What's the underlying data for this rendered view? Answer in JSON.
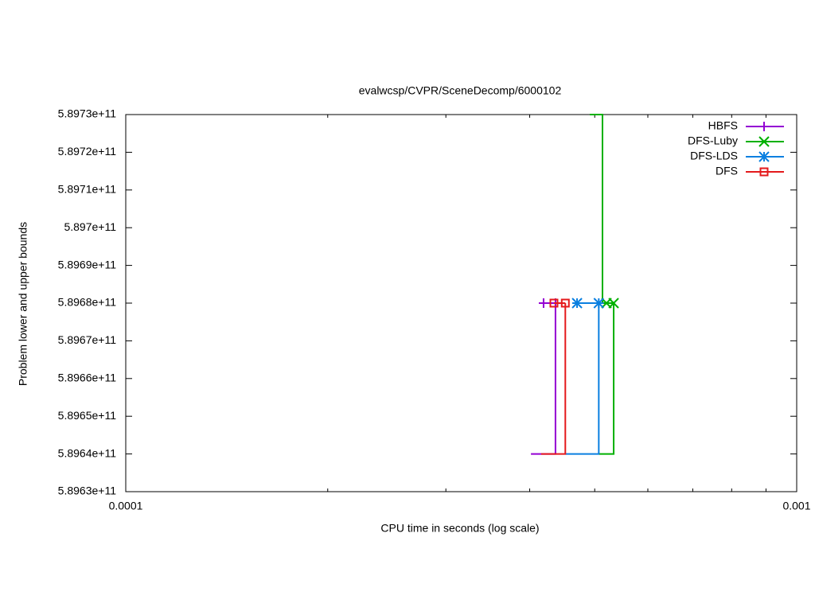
{
  "chart_data": {
    "type": "line",
    "title": "evalwcsp/CVPR/SceneDecomp/6000102",
    "xlabel": "CPU time in seconds (log scale)",
    "ylabel": "Problem lower and upper bounds",
    "xlog": true,
    "xlim": [
      0.0001,
      0.001
    ],
    "xticks": [
      0.0001,
      0.001
    ],
    "xminorticks": [
      0.0002,
      0.0003,
      0.0004,
      0.0005,
      0.0006,
      0.0007,
      0.0008,
      0.0009
    ],
    "ylim": [
      589630000000,
      589730000000
    ],
    "yticks": [
      {
        "value": 589630000000,
        "label": "5.8963e+11"
      },
      {
        "value": 589640000000,
        "label": "5.8964e+11"
      },
      {
        "value": 589650000000,
        "label": "5.8965e+11"
      },
      {
        "value": 589660000000,
        "label": "5.8966e+11"
      },
      {
        "value": 589670000000,
        "label": "5.8967e+11"
      },
      {
        "value": 589680000000,
        "label": "5.8968e+11"
      },
      {
        "value": 589690000000,
        "label": "5.8969e+11"
      },
      {
        "value": 589700000000,
        "label": "5.897e+11"
      },
      {
        "value": 589710000000,
        "label": "5.8971e+11"
      },
      {
        "value": 589720000000,
        "label": "5.8972e+11"
      },
      {
        "value": 589730000000,
        "label": "5.8973e+11"
      }
    ],
    "legend": "top-right",
    "series": [
      {
        "name": "HBFS",
        "color": "#9400d3",
        "marker": "plus",
        "x": [
          0.0004017,
          0.000437,
          0.000437,
          null,
          0.0004195,
          0.000437
        ],
        "values": [
          589640000000,
          589640000000,
          589680000000,
          null,
          589680000000,
          589680000000
        ]
      },
      {
        "name": "DFS-Luby",
        "color": "#00b000",
        "marker": "cross",
        "x": [
          0.000507,
          0.0005336,
          0.0005336,
          null,
          0.0004916,
          0.0005135,
          0.0005135,
          0.0005206,
          0.0005336
        ],
        "values": [
          589640000000,
          589640000000,
          589680000000,
          null,
          589730000000,
          589730000000,
          589680000000,
          589680000000,
          589680000000
        ]
      },
      {
        "name": "DFS-LDS",
        "color": "#0a7fe0",
        "marker": "star",
        "x": [
          0.000452,
          0.000507,
          0.000507,
          null,
          0.0004706,
          0.000507
        ],
        "values": [
          589640000000,
          589640000000,
          589680000000,
          null,
          589680000000,
          589680000000
        ]
      },
      {
        "name": "DFS",
        "color": "#e41a1c",
        "marker": "square",
        "x": [
          0.000416,
          0.000452,
          0.000452,
          null,
          0.0004347,
          0.000452
        ],
        "values": [
          589640000000,
          589640000000,
          589680000000,
          null,
          589680000000,
          589680000000
        ]
      }
    ]
  }
}
